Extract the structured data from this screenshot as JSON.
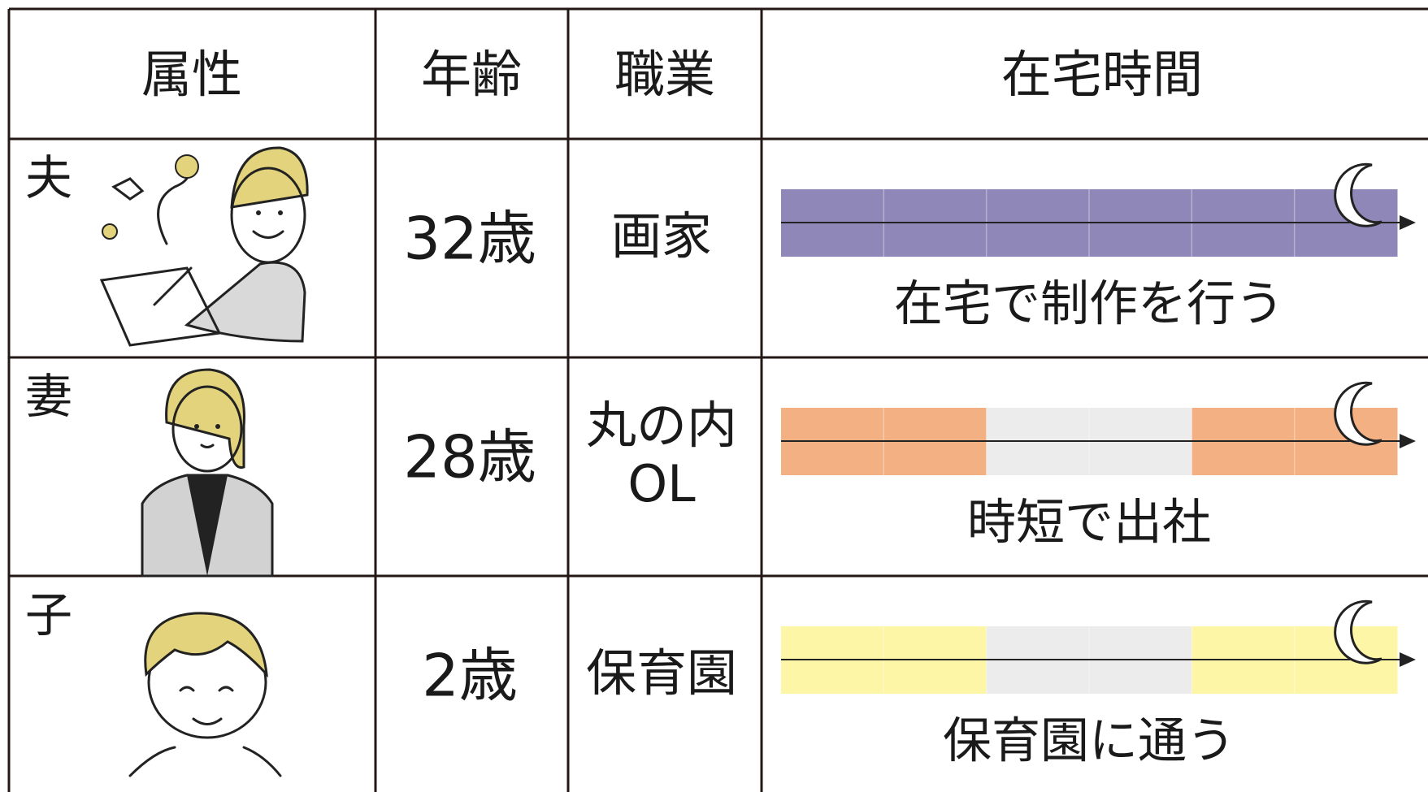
{
  "header": {
    "columns": [
      "属性",
      "年齢",
      "職業",
      "在宅時間"
    ]
  },
  "rows": [
    {
      "attribute": "夫",
      "age": "32歳",
      "job": [
        "画家"
      ],
      "schedule_label": "在宅で制作を行う",
      "segment_colors": [
        "#8e87b8",
        "#8e87b8",
        "#8e87b8",
        "#8e87b8",
        "#8e87b8",
        "#8e87b8"
      ]
    },
    {
      "attribute": "妻",
      "age": "28歳",
      "job": [
        "丸の内",
        "OL"
      ],
      "schedule_label": "時短で出社",
      "segment_colors": [
        "#f3b083",
        "#f3b083",
        "#ececec",
        "#ececec",
        "#f3b083",
        "#f3b083"
      ]
    },
    {
      "attribute": "子",
      "age": "2歳",
      "job": [
        "保育園"
      ],
      "schedule_label": "保育園に通う",
      "segment_colors": [
        "#fdf6a6",
        "#fdf6a6",
        "#ececec",
        "#ececec",
        "#fdf6a6",
        "#fdf6a6"
      ]
    }
  ]
}
